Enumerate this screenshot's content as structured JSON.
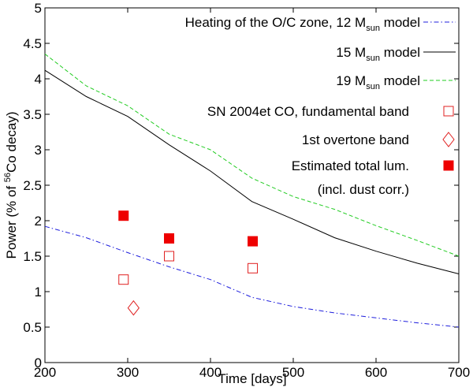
{
  "chart_data": {
    "type": "line",
    "xlabel": "Time [days]",
    "ylabel": {
      "prefix": "Power (% of ",
      "sup": "56",
      "suffix": "Co decay)"
    },
    "xlim": [
      200,
      700
    ],
    "ylim": [
      0,
      5
    ],
    "xticks": [
      200,
      300,
      400,
      500,
      600,
      700
    ],
    "yticks": [
      0,
      0.5,
      1,
      1.5,
      2,
      2.5,
      3,
      3.5,
      4,
      4.5,
      5
    ],
    "xtick_labels": [
      "200",
      "300",
      "400",
      "500",
      "600",
      "700"
    ],
    "ytick_labels": [
      "0",
      "0.5",
      "1",
      "1.5",
      "2",
      "2.5",
      "3",
      "3.5",
      "4",
      "4.5",
      "5"
    ],
    "grid": false,
    "legend_position": "right",
    "series": [
      {
        "name": "Heating of the O/C zone, 12 Msun model",
        "label_pre": "Heating of the O/C zone, 12 M",
        "label_sub": "sun",
        "label_post": " model",
        "style": "dashdot",
        "color": "#1f1fdd",
        "x": [
          200,
          250,
          300,
          350,
          400,
          450,
          500,
          550,
          600,
          650,
          700
        ],
        "y": [
          1.92,
          1.76,
          1.55,
          1.35,
          1.17,
          0.92,
          0.79,
          0.7,
          0.63,
          0.56,
          0.5
        ]
      },
      {
        "name": "15 Msun model",
        "label_pre": "15 M",
        "label_sub": "sun",
        "label_post": " model",
        "style": "solid",
        "color": "#000000",
        "x": [
          200,
          250,
          300,
          350,
          400,
          450,
          500,
          550,
          600,
          650,
          700
        ],
        "y": [
          4.12,
          3.75,
          3.47,
          3.07,
          2.7,
          2.27,
          2.02,
          1.76,
          1.57,
          1.4,
          1.25
        ]
      },
      {
        "name": "19 Msun model",
        "label_pre": "19 M",
        "label_sub": "sun",
        "label_post": " model",
        "style": "dashed",
        "color": "#22cc22",
        "x": [
          200,
          250,
          300,
          350,
          400,
          450,
          500,
          550,
          600,
          650,
          700
        ],
        "y": [
          4.35,
          3.9,
          3.62,
          3.22,
          3.0,
          2.6,
          2.34,
          2.16,
          1.93,
          1.72,
          1.5
        ]
      }
    ],
    "points": [
      {
        "name": "SN 2004et CO, fundamental band",
        "marker": "open-square",
        "color": "#e02020",
        "x": [
          295,
          350,
          451
        ],
        "y": [
          1.17,
          1.5,
          1.33
        ]
      },
      {
        "name": "1st overtone band",
        "marker": "open-diamond",
        "color": "#e02020",
        "x": [
          307
        ],
        "y": [
          0.77
        ]
      },
      {
        "name": "Estimated total lum. (incl. dust corr.)",
        "marker": "filled-square",
        "color": "#ee0000",
        "x": [
          295,
          350,
          451
        ],
        "y": [
          2.07,
          1.75,
          1.71
        ]
      }
    ],
    "legend": [
      {
        "label": "SN 2004et CO, fundamental band",
        "marker": "open-square"
      },
      {
        "label": "1st overtone band",
        "marker": "open-diamond"
      },
      {
        "label": "Estimated total lum.",
        "label2": "(incl. dust corr.)",
        "marker": "filled-square"
      }
    ]
  }
}
